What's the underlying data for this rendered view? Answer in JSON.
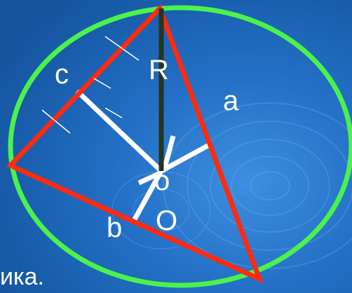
{
  "labels": {
    "side_c": "c",
    "radius": "R",
    "side_a": "a",
    "center_o": "o",
    "side_b": "b",
    "point_o": "O",
    "caption_fragment": "ика."
  },
  "colors": {
    "background": "#1a5fb0",
    "circle": "#4cf24c",
    "triangle": "#ff2a10",
    "perpendicular": "#ffffff",
    "radius": "#26341f",
    "text": "#ffffff"
  }
}
